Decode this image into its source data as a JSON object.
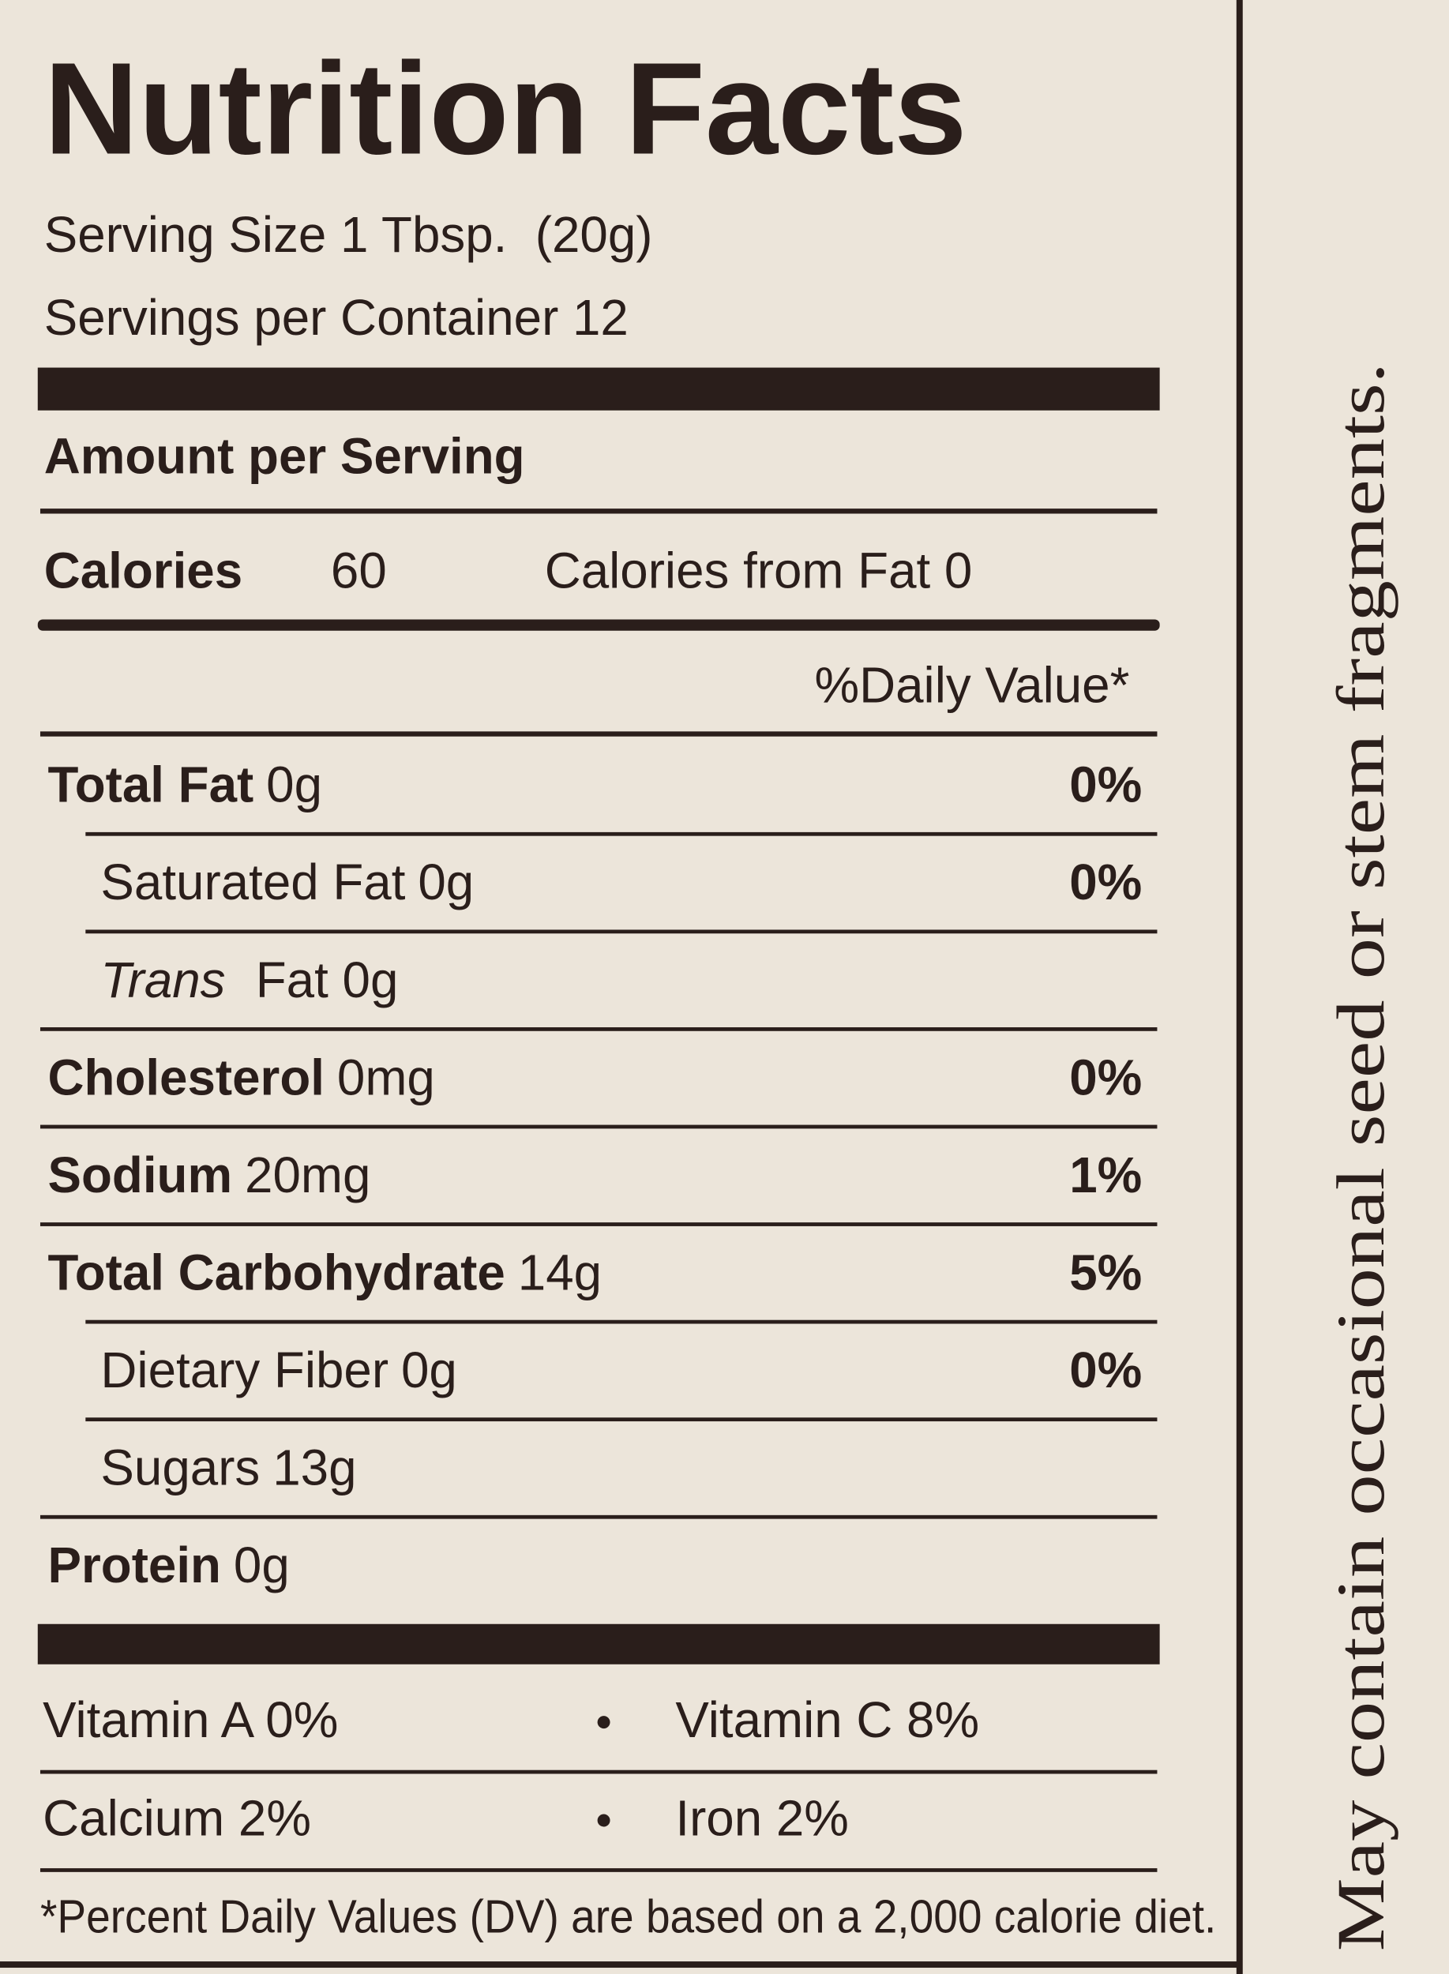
{
  "title": "Nutrition Facts",
  "serving_size": "Serving Size 1 Tbsp.  (20g)",
  "servings_per_container": "Servings per Container 12",
  "amount_header": "Amount per Serving",
  "calories": {
    "label": "Calories",
    "value": "60",
    "from_fat": "Calories from Fat 0"
  },
  "dv_header": "%Daily Value*",
  "nutrients": [
    {
      "name": "Total Fat",
      "amount": "0g",
      "dv": "0%",
      "bold": true,
      "indent": false
    },
    {
      "name": "Saturated Fat",
      "amount": "0g",
      "dv": "0%",
      "bold": false,
      "indent": true
    },
    {
      "name": "Trans",
      "amount": "Fat 0g",
      "bold": false,
      "italic": true,
      "indent": true
    },
    {
      "name": "Cholesterol",
      "amount": "0mg",
      "dv": "0%",
      "bold": true,
      "indent": false
    },
    {
      "name": "Sodium",
      "amount": "20mg",
      "dv": "1%",
      "bold": true,
      "indent": false
    },
    {
      "name": "Total Carbohydrate",
      "amount": "14g",
      "dv": "5%",
      "bold": true,
      "indent": false
    },
    {
      "name": "Dietary Fiber",
      "amount": "0g",
      "dv": "0%",
      "bold": false,
      "indent": true
    },
    {
      "name": "Sugars",
      "amount": "13g",
      "bold": false,
      "indent": true
    },
    {
      "name": "Protein",
      "amount": "0g",
      "bold": true,
      "indent": false
    }
  ],
  "vitamins": [
    [
      "Vitamin A 0%",
      "Vitamin C 8%"
    ],
    [
      "Calcium 2%",
      "Iron 2%"
    ]
  ],
  "footnote": "*Percent Daily Values (DV) are based on a 2,000 calorie diet.",
  "side_note": "May contain occasional seed or stem fragments."
}
